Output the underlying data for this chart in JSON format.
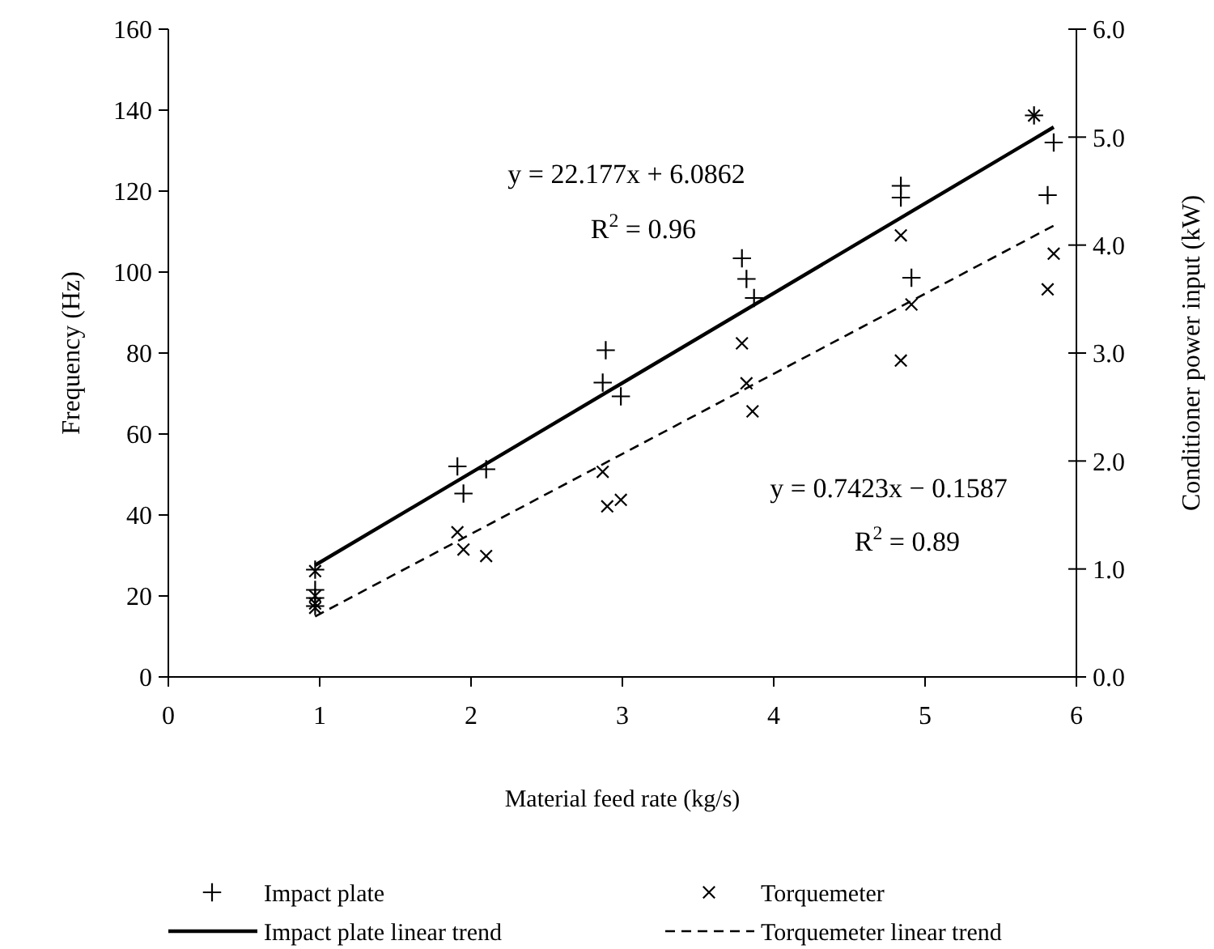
{
  "chart_data": {
    "type": "scatter",
    "xlabel": "Material feed rate (kg/s)",
    "ylabel": "Frequency (Hz)",
    "y2label": "Conditioner power input (kW)",
    "xlim": [
      0,
      6
    ],
    "xticks": [
      0,
      1,
      2,
      3,
      4,
      5,
      6
    ],
    "ylim": [
      0,
      160
    ],
    "yticks": [
      0,
      20,
      40,
      60,
      80,
      100,
      120,
      140,
      160
    ],
    "y2lim": [
      0,
      6
    ],
    "y2ticks": [
      {
        "value": 0,
        "label": "0.0"
      },
      {
        "value": 1,
        "label": "1.0"
      },
      {
        "value": 2,
        "label": "2.0"
      },
      {
        "value": 3,
        "label": "3.0"
      },
      {
        "value": 4,
        "label": "4.0"
      },
      {
        "value": 5,
        "label": "5.0"
      },
      {
        "value": 6,
        "label": "6.0"
      }
    ],
    "grid": false,
    "legend": "bottom",
    "series": [
      {
        "name": "Impact plate",
        "marker": "plus",
        "color": "#000000",
        "x": [
          0.97,
          0.97,
          0.97,
          0.97,
          1.91,
          1.95,
          2.1,
          2.89,
          2.87,
          2.99,
          3.79,
          3.82,
          3.87,
          4.84,
          4.84,
          4.91,
          5.72,
          5.85,
          5.81
        ],
        "values": [
          26.5,
          21.5,
          19.5,
          17.5,
          52,
          45.3,
          51.3,
          80.7,
          72.7,
          69.3,
          103.4,
          98.3,
          93.6,
          121.3,
          118.4,
          98.6,
          138.7,
          132,
          119
        ]
      },
      {
        "name": "Torquemeter",
        "marker": "cross",
        "axis": "y2",
        "color": "#000000",
        "x": [
          0.97,
          0.97,
          0.97,
          0.97,
          1.91,
          1.95,
          2.1,
          2.87,
          2.9,
          2.99,
          3.79,
          3.82,
          3.86,
          4.84,
          4.84,
          4.91,
          5.72,
          5.85,
          5.81
        ],
        "values": [
          0.98,
          0.75,
          0.68,
          0.64,
          1.34,
          1.18,
          1.12,
          1.9,
          1.58,
          1.64,
          3.09,
          2.72,
          2.46,
          4.09,
          2.93,
          3.45,
          5.2,
          3.92,
          3.59
        ]
      },
      {
        "name": "Impact plate linear trend",
        "type": "line",
        "marker": "none",
        "line_style": "solid",
        "color": "#000000",
        "x": [
          0.97,
          5.85
        ],
        "values": [
          27.6,
          135.8
        ]
      },
      {
        "name": "Torquemeter linear trend",
        "type": "line",
        "marker": "none",
        "line_style": "dashed",
        "axis": "y2",
        "color": "#000000",
        "x": [
          0.97,
          5.85
        ],
        "values": [
          0.56,
          4.18
        ]
      }
    ],
    "annotations": [
      "y = 22.177x + 6.0862",
      "R$^{2}$ = 0.96",
      "y = 0.7423x − 0.1587",
      "R$^{2}$ = 0.89"
    ]
  }
}
